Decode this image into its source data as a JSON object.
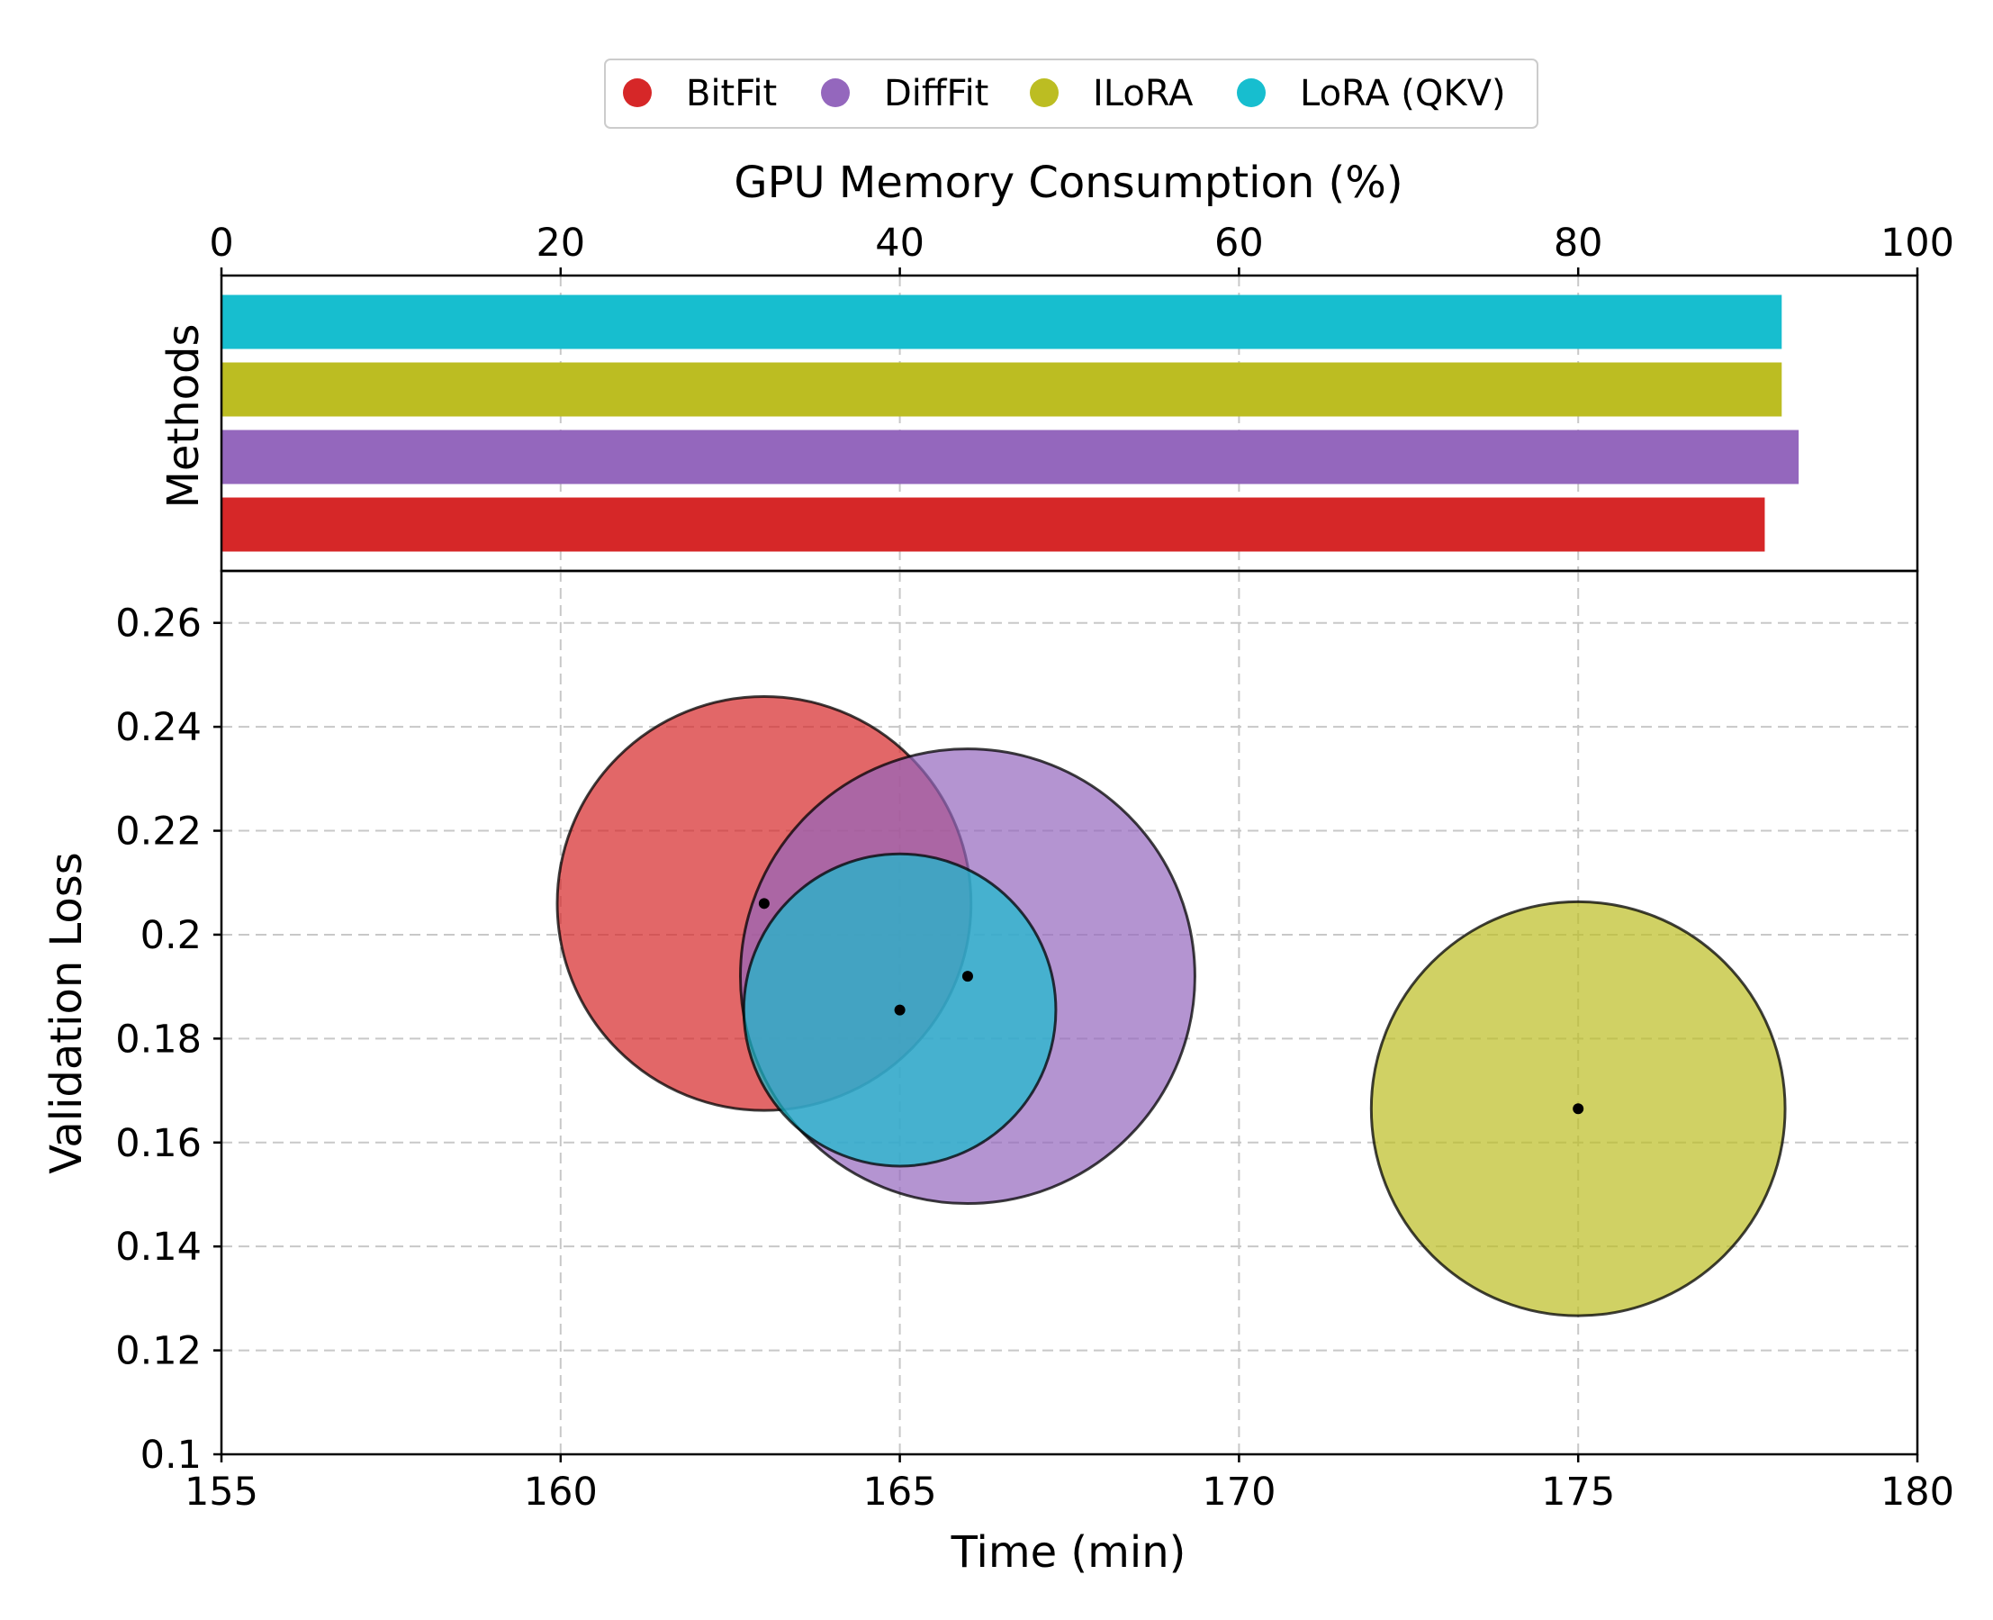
{
  "chart_data": [
    {
      "type": "bar",
      "orientation": "horizontal",
      "title": "",
      "xlabel": "GPU Memory Consumption (%)",
      "ylabel": "Methods",
      "xlim": [
        0,
        100
      ],
      "xticks": [
        "0",
        "20",
        "40",
        "60",
        "80",
        "100"
      ],
      "xtick_values": [
        0,
        20,
        40,
        60,
        80,
        100
      ],
      "categories": [
        "BitFit",
        "DiffFit",
        "ILoRA",
        "LoRA (QKV)"
      ],
      "values": [
        91,
        93,
        92,
        92
      ],
      "colors": [
        "#d62728",
        "#9467bd",
        "#bcbd22",
        "#17becf"
      ],
      "grid": true
    },
    {
      "type": "scatter",
      "subtype": "bubble",
      "title": "",
      "xlabel": "Time (min)",
      "ylabel": "Validation Loss",
      "xlim": [
        155,
        180
      ],
      "ylim": [
        0.1,
        0.27
      ],
      "xticks": [
        "155",
        "160",
        "165",
        "170",
        "175",
        "180"
      ],
      "xtick_values": [
        155,
        160,
        165,
        170,
        175,
        180
      ],
      "yticks": [
        "0.1",
        "0.12",
        "0.14",
        "0.16",
        "0.18",
        "0.2",
        "0.22",
        "0.24",
        "0.26"
      ],
      "ytick_values": [
        0.1,
        0.12,
        0.14,
        0.16,
        0.18,
        0.2,
        0.22,
        0.24,
        0.26
      ],
      "series": [
        {
          "name": "BitFit",
          "x": 163,
          "y": 0.206,
          "radius_min": 3.05,
          "color": "#d62728"
        },
        {
          "name": "DiffFit",
          "x": 166,
          "y": 0.192,
          "radius_min": 3.35,
          "color": "#9467bd"
        },
        {
          "name": "ILoRA",
          "x": 175,
          "y": 0.1665,
          "radius_min": 3.05,
          "color": "#bcbd22"
        },
        {
          "name": "LoRA (QKV)",
          "x": 165,
          "y": 0.1855,
          "radius_min": 2.3,
          "color": "#17becf"
        }
      ],
      "grid": true,
      "legend": {
        "position": "top-center",
        "entries": [
          "BitFit",
          "DiffFit",
          "ILoRA",
          "LoRA (QKV)"
        ]
      }
    }
  ]
}
